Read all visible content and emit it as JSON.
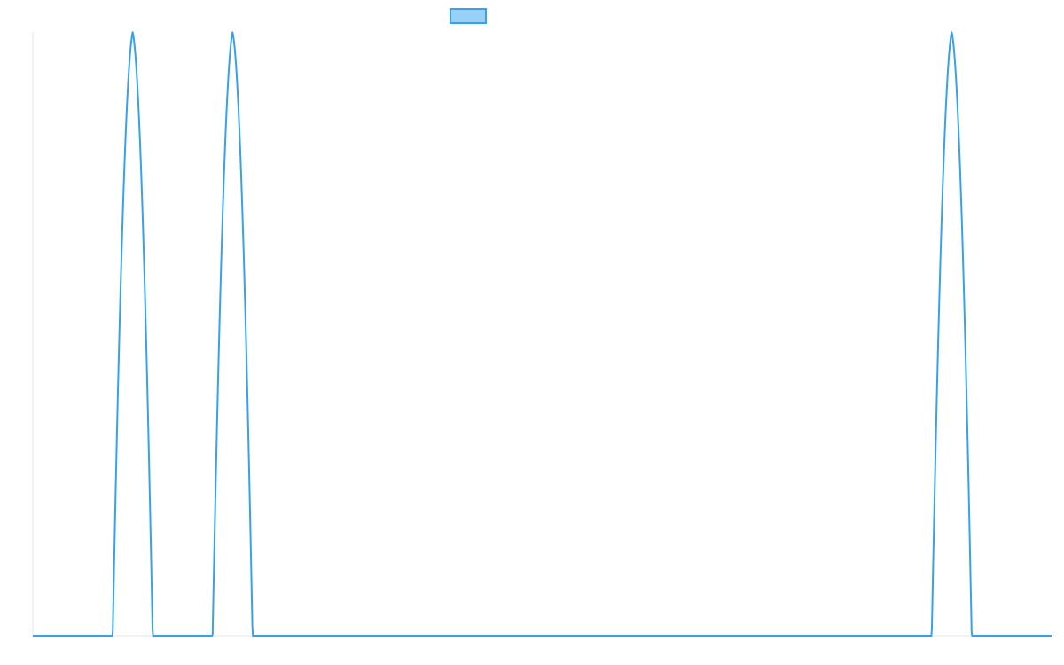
{
  "chart_data": {
    "type": "line",
    "title": "",
    "xlabel": "",
    "ylabel": "",
    "grid": false,
    "legend": "top-center",
    "xlim": [
      0,
      102
    ],
    "ylim": [
      0,
      1
    ],
    "peak_centers": [
      10,
      20,
      92
    ],
    "peak_half_width": 2,
    "peak_height": 1,
    "baseline": 0,
    "series": [
      {
        "name": "",
        "color": "#36a2eb",
        "fill": "#9ad0f5",
        "points": [
          [
            0,
            0
          ],
          [
            8,
            0
          ],
          [
            9,
            0.75
          ],
          [
            10,
            1
          ],
          [
            11,
            0.75
          ],
          [
            12,
            0
          ],
          [
            18,
            0
          ],
          [
            19,
            0.75
          ],
          [
            20,
            1
          ],
          [
            21,
            0.75
          ],
          [
            22,
            0
          ],
          [
            90,
            0
          ],
          [
            91,
            0.75
          ],
          [
            92,
            1
          ],
          [
            93,
            0.75
          ],
          [
            94,
            0
          ],
          [
            102,
            0
          ]
        ]
      }
    ]
  }
}
